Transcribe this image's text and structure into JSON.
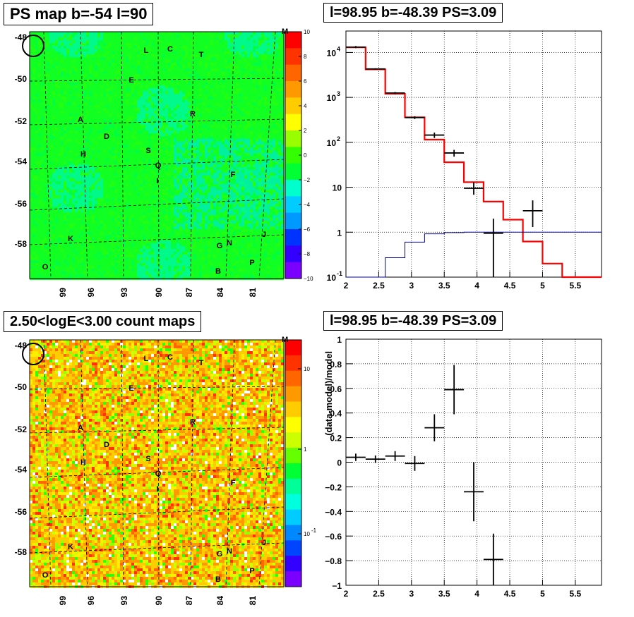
{
  "panels": {
    "ps_map": {
      "title": "PS map b=-54 l=90",
      "colorbar_ticks": [
        "10",
        "8",
        "6",
        "4",
        "2",
        "0",
        "−2",
        "−4",
        "−6",
        "−8",
        "−10"
      ],
      "colorbar_top_label": "M",
      "colors": [
        "#7a00ff",
        "#3300ff",
        "#0033ff",
        "#0099ff",
        "#00ccff",
        "#00ffcc",
        "#00ff33",
        "#33ff00",
        "#99ff00",
        "#ffff00",
        "#ffcc00",
        "#ff9900",
        "#ff6600",
        "#ff3300",
        "#ff0000"
      ]
    },
    "count_map": {
      "title": "2.50<logE<3.00 count maps",
      "colorbar_ticks": [
        "10",
        "1",
        "10"
      ],
      "colorbar_exp": "-1",
      "colorbar_top_label": "M"
    },
    "spectrum": {
      "title": "l=98.95 b=-48.39 PS=3.09"
    },
    "residual": {
      "title": "l=98.95 b=-48.39 PS=3.09"
    }
  },
  "map_axes": {
    "y_ticks": [
      "-48",
      "-50",
      "-52",
      "-54",
      "-56",
      "-58"
    ],
    "x_ticks": [
      "99",
      "96",
      "93",
      "90",
      "87",
      "84",
      "81"
    ]
  },
  "sources": [
    "L",
    "C",
    "T",
    "E",
    "R",
    "A",
    "D",
    "H",
    "S",
    "Q",
    "I",
    "F",
    "K",
    "G",
    "N",
    "J",
    "O",
    "B",
    "P"
  ],
  "chart_data": [
    {
      "type": "line",
      "title": "l=98.95 b=-48.39 PS=3.09",
      "xlabel": "",
      "ylabel": "",
      "xlim": [
        2,
        5.9
      ],
      "ylim": [
        0.1,
        30000
      ],
      "yscale": "log",
      "x_ticks": [
        "2",
        "2.5",
        "3",
        "3.5",
        "4",
        "4.5",
        "5",
        "5.5"
      ],
      "y_ticks": [
        "10^-1",
        "1",
        "10",
        "10^2",
        "10^3",
        "10^4"
      ],
      "grid": true,
      "series": [
        {
          "style": "step",
          "color": "#ff0000",
          "edges": [
            2.0,
            2.3,
            2.6,
            2.9,
            3.2,
            3.5,
            3.8,
            4.1,
            4.4,
            4.7,
            5.0,
            5.3,
            5.9
          ],
          "values": [
            13000,
            4200,
            1200,
            360,
            115,
            36,
            13,
            4.8,
            1.9,
            0.62,
            0.2,
            0.065
          ]
        },
        {
          "style": "step",
          "color": "#00008b",
          "edges": [
            2.0,
            2.3,
            2.6,
            2.9,
            3.2,
            3.5,
            3.8,
            4.1,
            4.4,
            4.7,
            5.0,
            5.3,
            5.9
          ],
          "values": [
            0.05,
            0.1,
            0.27,
            0.6,
            0.92,
            0.98,
            1.0,
            1.0,
            1.0,
            1.0,
            1.0,
            1.0
          ]
        },
        {
          "style": "points",
          "color": "#000000",
          "x": [
            2.15,
            2.45,
            2.75,
            3.05,
            3.35,
            3.65,
            3.95,
            4.25,
            4.85
          ],
          "xerr": 0.15,
          "y": [
            13200,
            4300,
            1250,
            355,
            145,
            58,
            9.5,
            0.95,
            3.0
          ],
          "ylo": [
            12500,
            4150,
            1180,
            330,
            125,
            48,
            6.8,
            0.05,
            1.3
          ],
          "yhi": [
            13900,
            4450,
            1320,
            380,
            165,
            68,
            12.8,
            2.0,
            5.1
          ]
        }
      ]
    },
    {
      "type": "scatter",
      "title": "l=98.95 b=-48.39 PS=3.09",
      "xlabel": "",
      "ylabel": "(data-model)/model",
      "xlim": [
        2,
        5.9
      ],
      "ylim": [
        -1,
        1
      ],
      "x_ticks": [
        "2",
        "2.5",
        "3",
        "3.5",
        "4",
        "4.5",
        "5",
        "5.5"
      ],
      "y_ticks": [
        "1",
        "0.8",
        "0.6",
        "0.4",
        "0.2",
        "0",
        "−0.2",
        "−0.4",
        "−0.6",
        "−0.8",
        "−1"
      ],
      "grid": true,
      "x": [
        2.15,
        2.45,
        2.75,
        3.05,
        3.35,
        3.65,
        3.95,
        4.25
      ],
      "xerr": 0.15,
      "y": [
        0.04,
        0.025,
        0.05,
        -0.01,
        0.28,
        0.59,
        -0.24,
        -0.79
      ],
      "yerr": [
        0.03,
        0.03,
        0.04,
        0.06,
        0.11,
        0.2,
        0.24,
        0.21
      ]
    }
  ]
}
